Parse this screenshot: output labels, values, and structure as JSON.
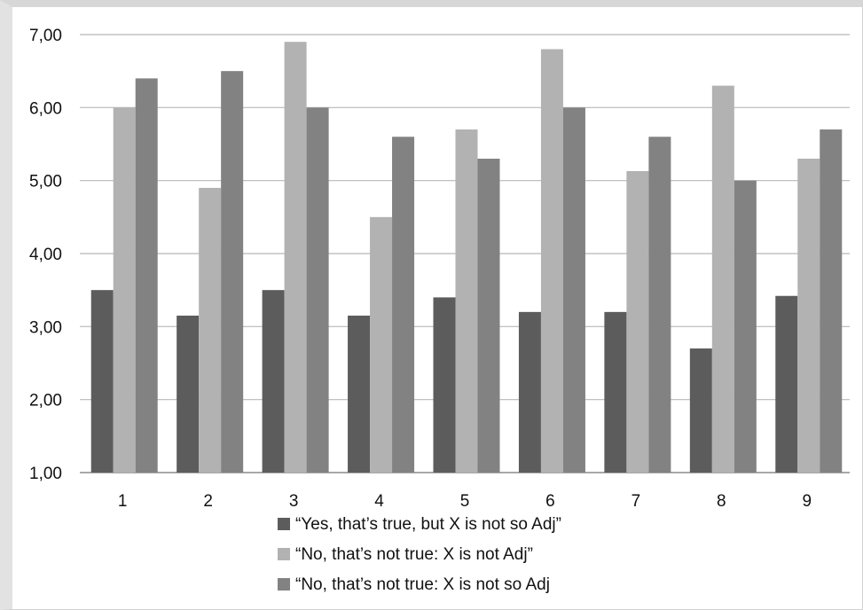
{
  "chart_data": {
    "type": "bar",
    "title": "",
    "xlabel": "",
    "ylabel": "",
    "categories": [
      "1",
      "2",
      "3",
      "4",
      "5",
      "6",
      "7",
      "8",
      "9"
    ],
    "ylim": [
      1,
      7
    ],
    "yticks": [
      "1,00",
      "2,00",
      "3,00",
      "4,00",
      "5,00",
      "6,00",
      "7,00"
    ],
    "grid": true,
    "legend_position": "bottom",
    "series": [
      {
        "name": "“Yes, that’s true, but X is not so Adj”",
        "color": "#5c5c5c",
        "values": [
          3.5,
          3.15,
          3.5,
          3.15,
          3.4,
          3.2,
          3.2,
          2.7,
          3.42
        ]
      },
      {
        "name": "“No, that’s not true: X is not Adj”",
        "color": "#b2b2b2",
        "values": [
          6.0,
          4.9,
          6.9,
          4.5,
          5.7,
          6.8,
          5.13,
          6.3,
          5.3
        ]
      },
      {
        "name": "“No, that’s not true: X is not so Adj",
        "color": "#828282",
        "values": [
          6.4,
          6.5,
          6.0,
          5.6,
          5.3,
          6.0,
          5.6,
          5.0,
          5.7
        ]
      }
    ]
  }
}
